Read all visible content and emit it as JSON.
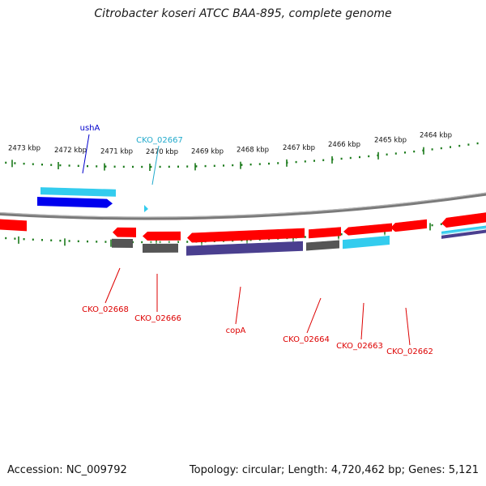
{
  "title": "Citrobacter koseri ATCC BAA-895, complete genome",
  "footer": {
    "accession": "Accession: NC_009792",
    "topology": "Topology: circular; Length: 4,720,462 bp; Genes: 5,121"
  },
  "colors": {
    "red_gene": "#ff0000",
    "blue_gene": "#0000ee",
    "cyan_gene": "#33ccee",
    "gray_gene": "#555555",
    "purple_gene": "#4a3f8f",
    "tick_green": "#1a7a1a",
    "backbone": "#7a7a7a",
    "label_red": "#dd0000",
    "label_blue": "#0000cc",
    "label_cyan": "#22aacc"
  },
  "ticks": [
    "2473 kbp",
    "2472 kbp",
    "2471 kbp",
    "2470 kbp",
    "2469 kbp",
    "2468 kbp",
    "2467 kbp",
    "2466 kbp",
    "2465 kbp",
    "2464 kbp"
  ],
  "gene_labels": {
    "ushA": "ushA",
    "cko_02667": "CKO_02667",
    "cko_02668": "CKO_02668",
    "cko_02666": "CKO_02666",
    "copA": "copA",
    "cko_02664": "CKO_02664",
    "cko_02663": "CKO_02663",
    "cko_02662": "CKO_02662"
  }
}
